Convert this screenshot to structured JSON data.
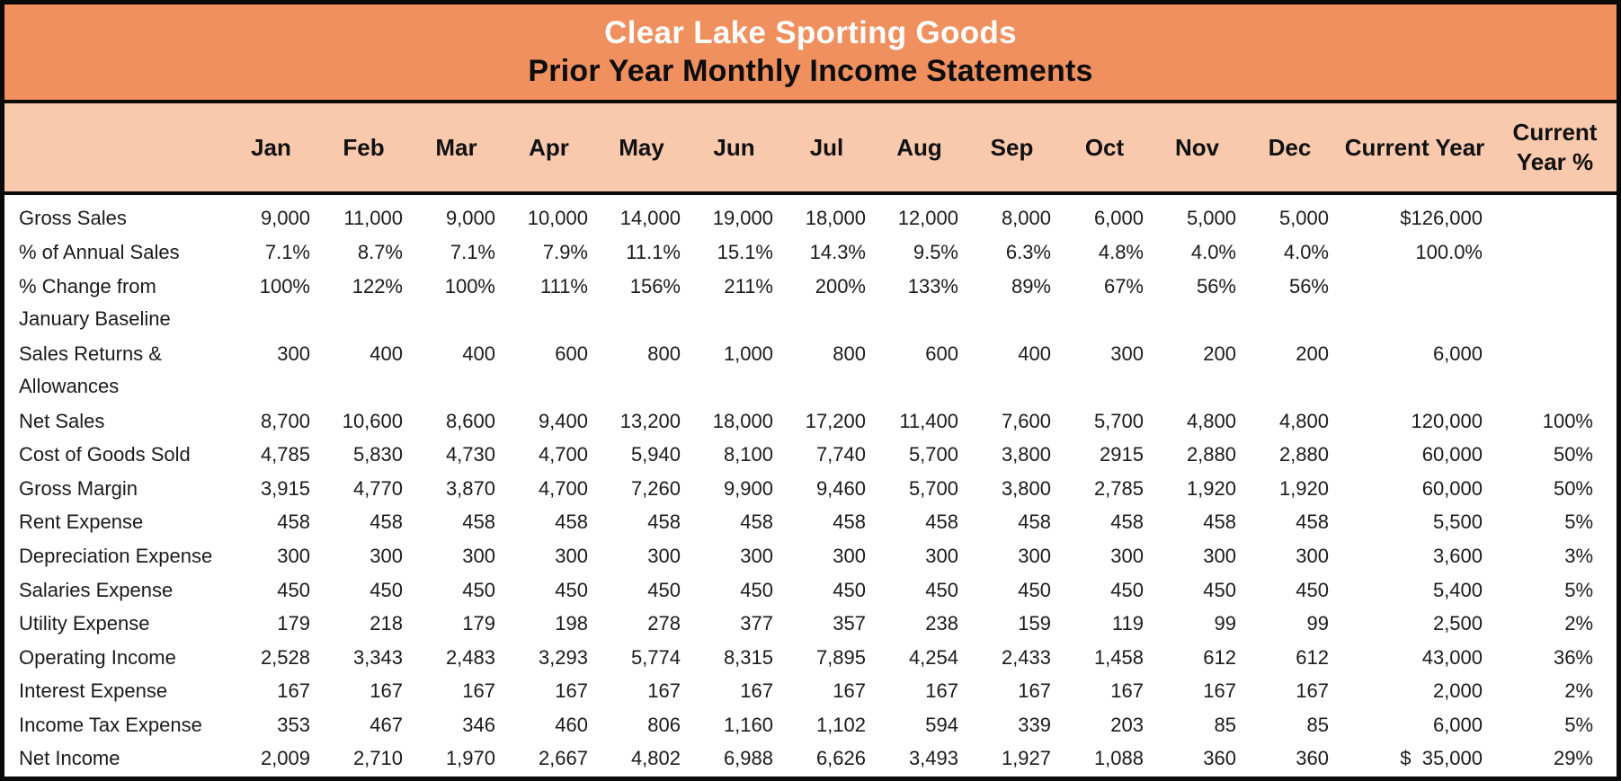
{
  "title": {
    "company": "Clear Lake Sporting Goods",
    "subtitle": "Prior Year Monthly Income Statements"
  },
  "colors": {
    "title_band": "#f0905e",
    "header_band": "#f8c9ac",
    "border": "#0a0a0a",
    "title_text": "#ffffff",
    "subtitle_text": "#0d0d0d",
    "body_text": "#1b1b1b"
  },
  "table": {
    "columns": [
      "",
      "Jan",
      "Feb",
      "Mar",
      "Apr",
      "May",
      "Jun",
      "Jul",
      "Aug",
      "Sep",
      "Oct",
      "Nov",
      "Dec",
      "Current Year",
      "Current Year %"
    ],
    "rows": [
      {
        "label": "Gross Sales",
        "values": [
          "9,000",
          "11,000",
          "9,000",
          "10,000",
          "14,000",
          "19,000",
          "18,000",
          "12,000",
          "8,000",
          "6,000",
          "5,000",
          "5,000",
          "$126,000",
          ""
        ]
      },
      {
        "label": "% of Annual Sales",
        "values": [
          "7.1%",
          "8.7%",
          "7.1%",
          "7.9%",
          "11.1%",
          "15.1%",
          "14.3%",
          "9.5%",
          "6.3%",
          "4.8%",
          "4.0%",
          "4.0%",
          "100.0%",
          ""
        ]
      },
      {
        "label": "% Change from\nJanuary Baseline",
        "values": [
          "100%",
          "122%",
          "100%",
          "111%",
          "156%",
          "211%",
          "200%",
          "133%",
          "89%",
          "67%",
          "56%",
          "56%",
          "",
          ""
        ]
      },
      {
        "label": "Sales Returns &\nAllowances",
        "values": [
          "300",
          "400",
          "400",
          "600",
          "800",
          "1,000",
          "800",
          "600",
          "400",
          "300",
          "200",
          "200",
          "6,000",
          ""
        ]
      },
      {
        "label": "Net Sales",
        "values": [
          "8,700",
          "10,600",
          "8,600",
          "9,400",
          "13,200",
          "18,000",
          "17,200",
          "11,400",
          "7,600",
          "5,700",
          "4,800",
          "4,800",
          "120,000",
          "100%"
        ]
      },
      {
        "label": "Cost of Goods Sold",
        "values": [
          "4,785",
          "5,830",
          "4,730",
          "4,700",
          "5,940",
          "8,100",
          "7,740",
          "5,700",
          "3,800",
          "2915",
          "2,880",
          "2,880",
          "60,000",
          "50%"
        ]
      },
      {
        "label": "Gross Margin",
        "values": [
          "3,915",
          "4,770",
          "3,870",
          "4,700",
          "7,260",
          "9,900",
          "9,460",
          "5,700",
          "3,800",
          "2,785",
          "1,920",
          "1,920",
          "60,000",
          "50%"
        ]
      },
      {
        "label": "Rent Expense",
        "values": [
          "458",
          "458",
          "458",
          "458",
          "458",
          "458",
          "458",
          "458",
          "458",
          "458",
          "458",
          "458",
          "5,500",
          "5%"
        ]
      },
      {
        "label": "Depreciation Expense",
        "values": [
          "300",
          "300",
          "300",
          "300",
          "300",
          "300",
          "300",
          "300",
          "300",
          "300",
          "300",
          "300",
          "3,600",
          "3%"
        ]
      },
      {
        "label": "Salaries Expense",
        "values": [
          "450",
          "450",
          "450",
          "450",
          "450",
          "450",
          "450",
          "450",
          "450",
          "450",
          "450",
          "450",
          "5,400",
          "5%"
        ]
      },
      {
        "label": "Utility Expense",
        "values": [
          "179",
          "218",
          "179",
          "198",
          "278",
          "377",
          "357",
          "238",
          "159",
          "119",
          "99",
          "99",
          "2,500",
          "2%"
        ]
      },
      {
        "label": "Operating Income",
        "values": [
          "2,528",
          "3,343",
          "2,483",
          "3,293",
          "5,774",
          "8,315",
          "7,895",
          "4,254",
          "2,433",
          "1,458",
          "612",
          "612",
          "43,000",
          "36%"
        ]
      },
      {
        "label": "Interest Expense",
        "values": [
          "167",
          "167",
          "167",
          "167",
          "167",
          "167",
          "167",
          "167",
          "167",
          "167",
          "167",
          "167",
          "2,000",
          "2%"
        ]
      },
      {
        "label": "Income Tax Expense",
        "values": [
          "353",
          "467",
          "346",
          "460",
          "806",
          "1,160",
          "1,102",
          "594",
          "339",
          "203",
          "85",
          "85",
          "6,000",
          "5%"
        ]
      },
      {
        "label": "Net Income",
        "values": [
          "2,009",
          "2,710",
          "1,970",
          "2,667",
          "4,802",
          "6,988",
          "6,626",
          "3,493",
          "1,927",
          "1,088",
          "360",
          "360",
          "$  35,000",
          "29%"
        ]
      }
    ]
  }
}
